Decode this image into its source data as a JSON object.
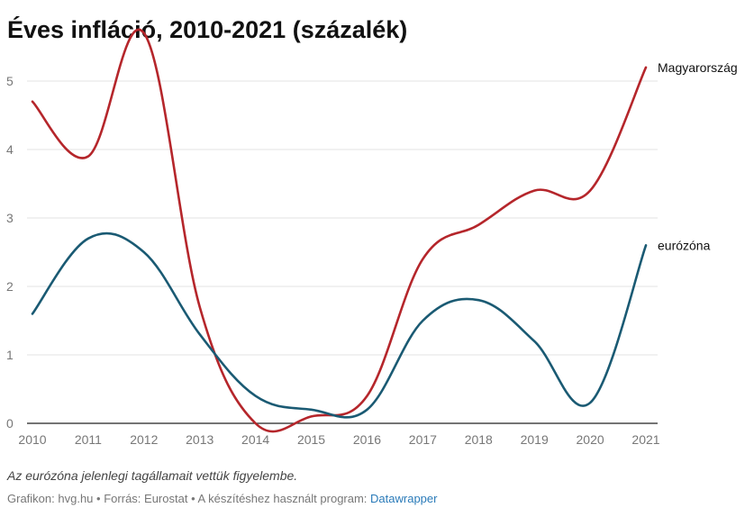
{
  "title": "Éves infláció, 2010-2021 (százalék)",
  "note": "Az eurózóna jelenlegi tagállamait vettük figyelembe.",
  "credit": {
    "graphic_label": "Grafikon:",
    "graphic_value": "hvg.hu",
    "source_label": "Forrás:",
    "source_value": "Eurostat",
    "tool_label": "A készítéshez használt program:",
    "tool_value": "Datawrapper",
    "separator": "•"
  },
  "colors": {
    "hungary": "#b5262b",
    "eurozone": "#1a5a73",
    "grid": "#e3e3e3",
    "axis": "#222222",
    "tick_text": "#777777",
    "link": "#2b7bb9"
  },
  "chart_data": {
    "type": "line",
    "title": "Éves infláció, 2010-2021 (százalék)",
    "x": [
      2010,
      2011,
      2012,
      2013,
      2014,
      2015,
      2016,
      2017,
      2018,
      2019,
      2020,
      2021
    ],
    "xlim": [
      2010,
      2021
    ],
    "ylim": [
      0,
      5.5
    ],
    "yticks": [
      0,
      1,
      2,
      3,
      4,
      5
    ],
    "grid": true,
    "legend": "direct labels at line ends",
    "series": [
      {
        "name": "Magyarország",
        "values": [
          4.7,
          3.9,
          5.7,
          1.7,
          0.0,
          0.1,
          0.4,
          2.4,
          2.9,
          3.4,
          3.4,
          5.2
        ]
      },
      {
        "name": "eurózóna",
        "values": [
          1.6,
          2.7,
          2.5,
          1.3,
          0.4,
          0.2,
          0.2,
          1.5,
          1.8,
          1.2,
          0.3,
          2.6
        ]
      }
    ]
  }
}
